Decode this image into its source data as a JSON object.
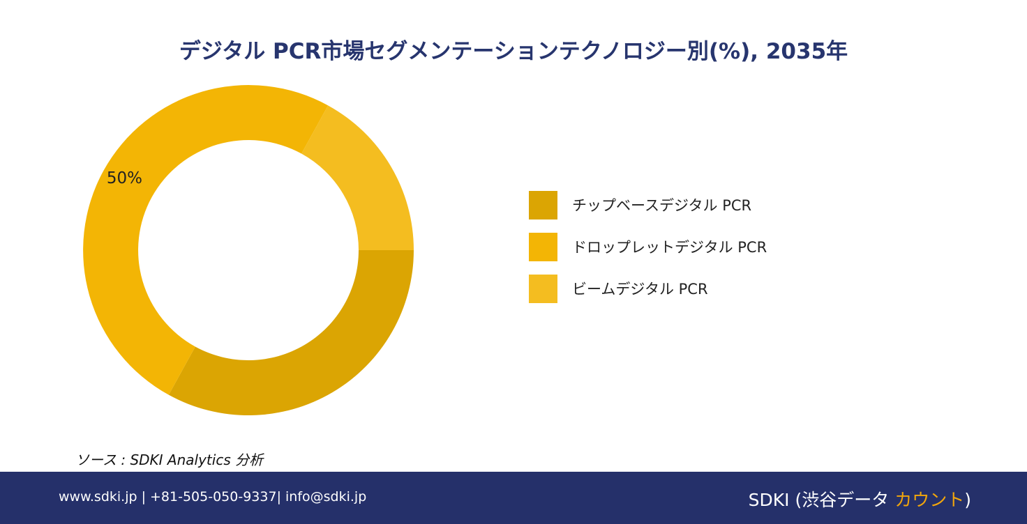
{
  "chart_data": {
    "type": "donut",
    "title": "デジタル PCR市場セグメンテーションテクノロジー別(%), 2035年",
    "series": [
      {
        "name": "チップベースデジタル PCR",
        "value": 33,
        "color": "#dba503"
      },
      {
        "name": "ドロップレットデジタル PCR",
        "value": 50,
        "color": "#f3b505"
      },
      {
        "name": "ビームデジタル PCR",
        "value": 17,
        "color": "#f4bd20"
      }
    ],
    "data_labels": [
      {
        "series": "ドロップレットデジタル PCR",
        "text": "50%"
      }
    ],
    "legend_position": "right"
  },
  "source": "ソース : SDKI Analytics  分析",
  "footer": {
    "contact": "www.sdki.jp | +81-505-050-9337| info@sdki.jp",
    "brand_prefix": "SDKI (渋谷データ ",
    "brand_accent": "カウント",
    "brand_suffix": ")",
    "background_color": "#25306a",
    "accent_color": "#f2a60c"
  }
}
